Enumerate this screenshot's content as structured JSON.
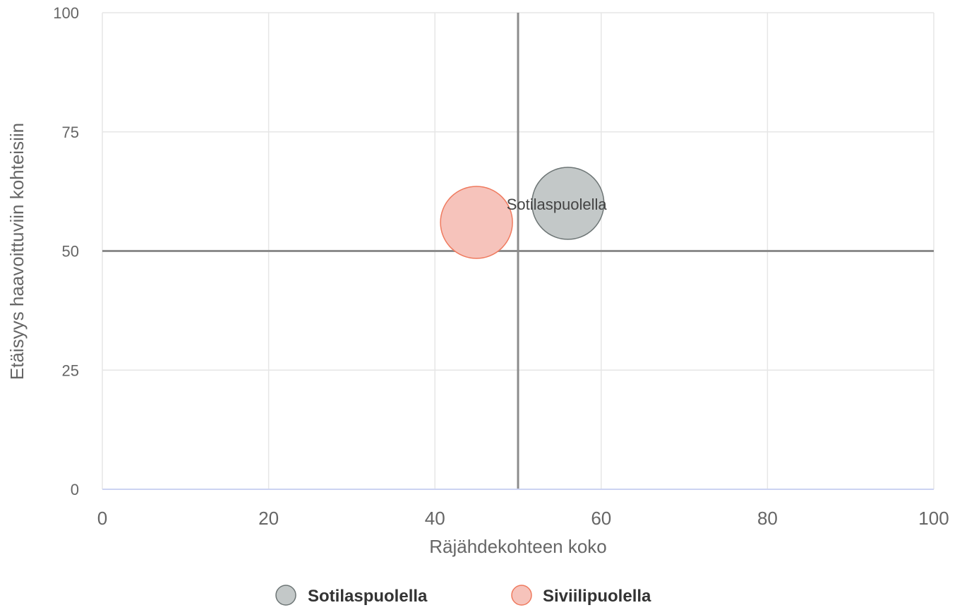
{
  "chart_data": {
    "type": "bubble",
    "title": "",
    "xlabel": "Räjähdekohteen koko",
    "ylabel": "Etäisyys haavoittuviin kohteisiin",
    "xlim": [
      0,
      100
    ],
    "ylim": [
      0,
      100
    ],
    "x_ticks": [
      "0",
      "20",
      "40",
      "60",
      "80",
      "100"
    ],
    "y_ticks": [
      "0",
      "25",
      "50",
      "75",
      "100"
    ],
    "x_tick_values": [
      0,
      20,
      40,
      60,
      80,
      100
    ],
    "y_tick_values": [
      0,
      25,
      50,
      75,
      100
    ],
    "grid": true,
    "quadrant_lines": {
      "x": 50,
      "y": 50
    },
    "legend_position": "bottom",
    "series": [
      {
        "name": "Sotilaspuolella",
        "color": "#c3c8c8",
        "border_color": "#6d7575",
        "points": [
          {
            "x": 56,
            "y": 60,
            "size": 1,
            "label": "Sotilaspuolella"
          }
        ]
      },
      {
        "name": "Siviilipuolella",
        "color": "#f6c3bb",
        "border_color": "#ef7a5e",
        "points": [
          {
            "x": 45,
            "y": 56,
            "size": 1,
            "label": ""
          }
        ]
      }
    ]
  }
}
